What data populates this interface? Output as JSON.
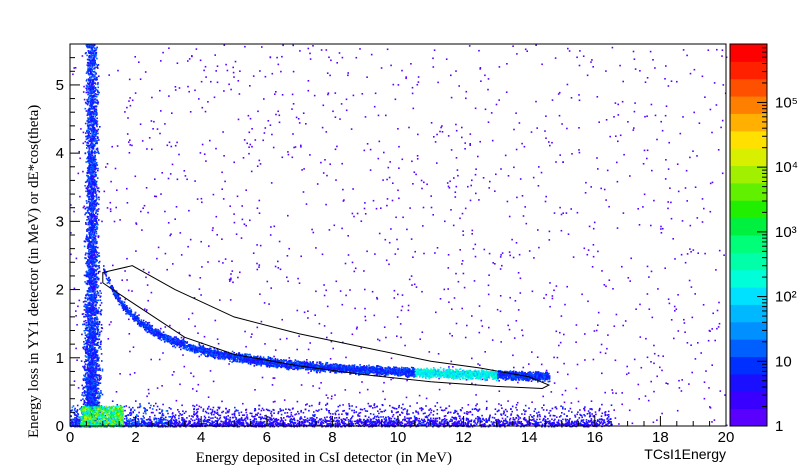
{
  "chart_data": {
    "type": "heatmap",
    "title": "",
    "xlabel": "Energy deposited in CsI detector (in MeV)",
    "ylabel": "Energy loss in YY1 detector (in MeV)  or   dE*cos(theta)",
    "corner_label": "TCsI1Energy",
    "xlim": [
      0,
      20
    ],
    "ylim": [
      0,
      5.6
    ],
    "x_ticks": [
      "0",
      "2",
      "4",
      "6",
      "8",
      "10",
      "12",
      "14",
      "16",
      "18",
      "20"
    ],
    "y_ticks": [
      "0",
      "1",
      "2",
      "3",
      "4",
      "5"
    ],
    "z_scale": "log",
    "zlim": [
      1,
      800000
    ],
    "colorbar_ticks": [
      {
        "value": 1,
        "label": "1"
      },
      {
        "value": 10,
        "label": "10"
      },
      {
        "value": 100,
        "label": "10²"
      },
      {
        "value": 1000,
        "label": "10³"
      },
      {
        "value": 10000,
        "label": "10⁴"
      },
      {
        "value": 100000,
        "label": "10⁵"
      }
    ],
    "palette": [
      "#5a00ff",
      "#3a00ff",
      "#1a10ff",
      "#0030ff",
      "#0060ff",
      "#0090ff",
      "#00b8ff",
      "#00e0ff",
      "#00ffd8",
      "#00ffa8",
      "#00ff78",
      "#00f040",
      "#20f000",
      "#60f000",
      "#a0f000",
      "#d8f000",
      "#ffe000",
      "#ffb000",
      "#ff8000",
      "#ff5000",
      "#ff2000",
      "#ff0000"
    ],
    "features": [
      {
        "name": "vertical band",
        "x": [
          0.3,
          1.0
        ],
        "y": [
          0,
          5.6
        ],
        "peak": 0.9
      },
      {
        "name": "low-energy spot",
        "x": [
          0.2,
          1.6
        ],
        "y": [
          0,
          0.35
        ],
        "peak": 1.0
      },
      {
        "name": "baseline",
        "x": [
          0,
          16.5
        ],
        "y": [
          0,
          0.25
        ],
        "peak": 0.55
      },
      {
        "name": "curved locus",
        "x": [
          1.0,
          14.5
        ],
        "y": [
          0.6,
          2.2
        ],
        "peak": 0.7
      }
    ],
    "cut_polygon": [
      [
        1.0,
        2.25
      ],
      [
        1.9,
        2.35
      ],
      [
        3.2,
        2.0
      ],
      [
        5.0,
        1.6
      ],
      [
        7.0,
        1.35
      ],
      [
        9.0,
        1.15
      ],
      [
        11.0,
        0.95
      ],
      [
        12.5,
        0.85
      ],
      [
        14.0,
        0.72
      ],
      [
        14.6,
        0.6
      ],
      [
        14.4,
        0.55
      ],
      [
        13.0,
        0.58
      ],
      [
        11.0,
        0.65
      ],
      [
        9.0,
        0.75
      ],
      [
        7.0,
        0.88
      ],
      [
        5.0,
        1.05
      ],
      [
        3.5,
        1.3
      ],
      [
        2.4,
        1.65
      ],
      [
        1.3,
        2.0
      ],
      [
        1.0,
        2.1
      ]
    ]
  }
}
